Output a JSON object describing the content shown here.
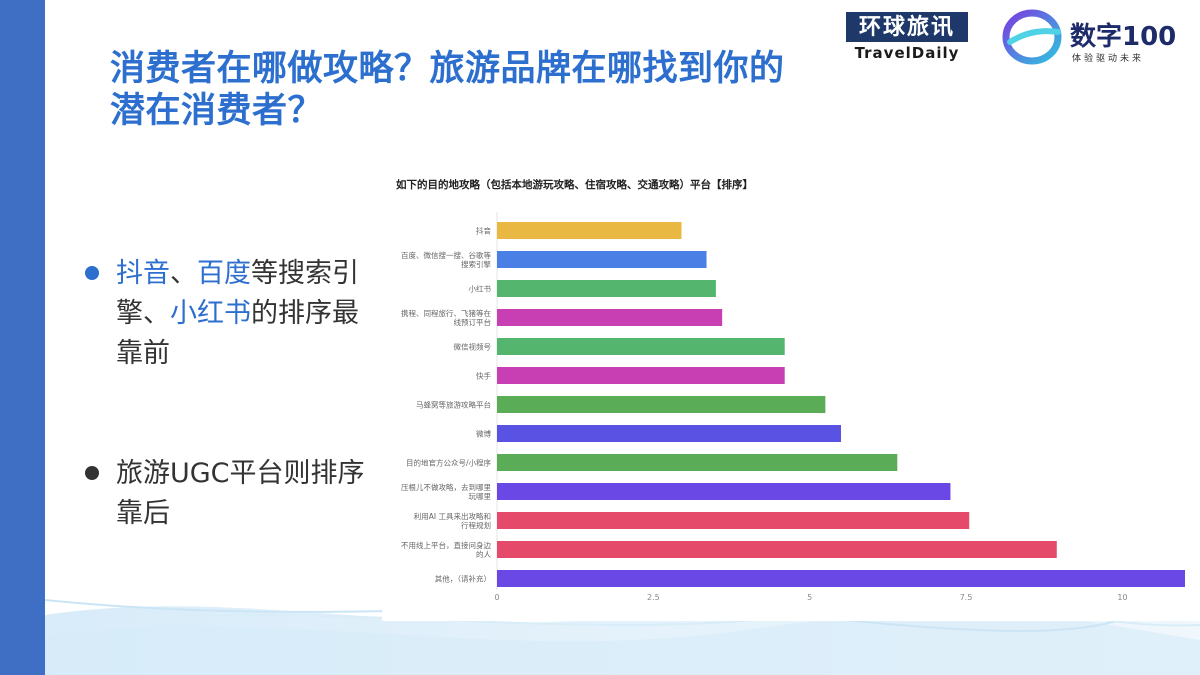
{
  "slide": {
    "title": "消费者在哪做攻略？旅游品牌在哪找到你的潜在消费者？",
    "bullets": [
      {
        "parts": [
          {
            "text": "抖音",
            "highlight": true
          },
          {
            "text": "、",
            "highlight": false
          },
          {
            "text": "百度",
            "highlight": true
          },
          {
            "text": "等搜索引擎、",
            "highlight": false
          },
          {
            "text": "小红书",
            "highlight": true
          },
          {
            "text": "的排序最靠前",
            "highlight": false
          }
        ]
      },
      {
        "parts": [
          {
            "text": "旅游UGC平台则排序靠后",
            "highlight": false
          }
        ]
      }
    ],
    "colors": {
      "accent": "#2d6fce",
      "strip": "#3f6fc4",
      "text": "#333333"
    }
  },
  "logos": {
    "travel_daily": {
      "cn": "环球旅讯",
      "en": "TravelDaily"
    },
    "shuzi100": {
      "name": "数字100",
      "slogan": "体验驱动未来"
    }
  },
  "chart_data": {
    "type": "bar",
    "orientation": "horizontal",
    "title": "如下的目的地攻略（包括本地游玩攻略、住宿攻略、交通攻略）平台【排序】",
    "categories": [
      "抖音",
      "百度、微信搜一搜、谷歌等搜索引擎",
      "小红书",
      "携程、同程旅行、飞猪等在线预订平台",
      "微信视频号",
      "快手",
      "马蜂窝等旅游攻略平台",
      "微博",
      "目的地官方公众号/小程序",
      "压根儿不做攻略，去到哪里玩哪里",
      "利用AI 工具来出攻略和行程规划",
      "不用线上平台，直接问身边的人",
      "其他，（请补充）"
    ],
    "values": [
      2.95,
      3.35,
      3.5,
      3.6,
      4.6,
      4.6,
      5.25,
      5.5,
      6.4,
      7.25,
      7.55,
      8.95,
      11.0
    ],
    "bar_colors": [
      "#e9b842",
      "#4a7fe6",
      "#53b56e",
      "#c83fb4",
      "#53b56e",
      "#c83fb4",
      "#5aac56",
      "#5a52e3",
      "#5aac56",
      "#6a48e6",
      "#e64a6b",
      "#e64a6b",
      "#6a48e6"
    ],
    "x_ticks": [
      0,
      2.5,
      5,
      7.5,
      10
    ],
    "x_tick_labels": [
      "0",
      "2.5",
      "5",
      "7.5",
      "10"
    ],
    "xlim": [
      0,
      11
    ],
    "grid": false,
    "legend": "none"
  }
}
